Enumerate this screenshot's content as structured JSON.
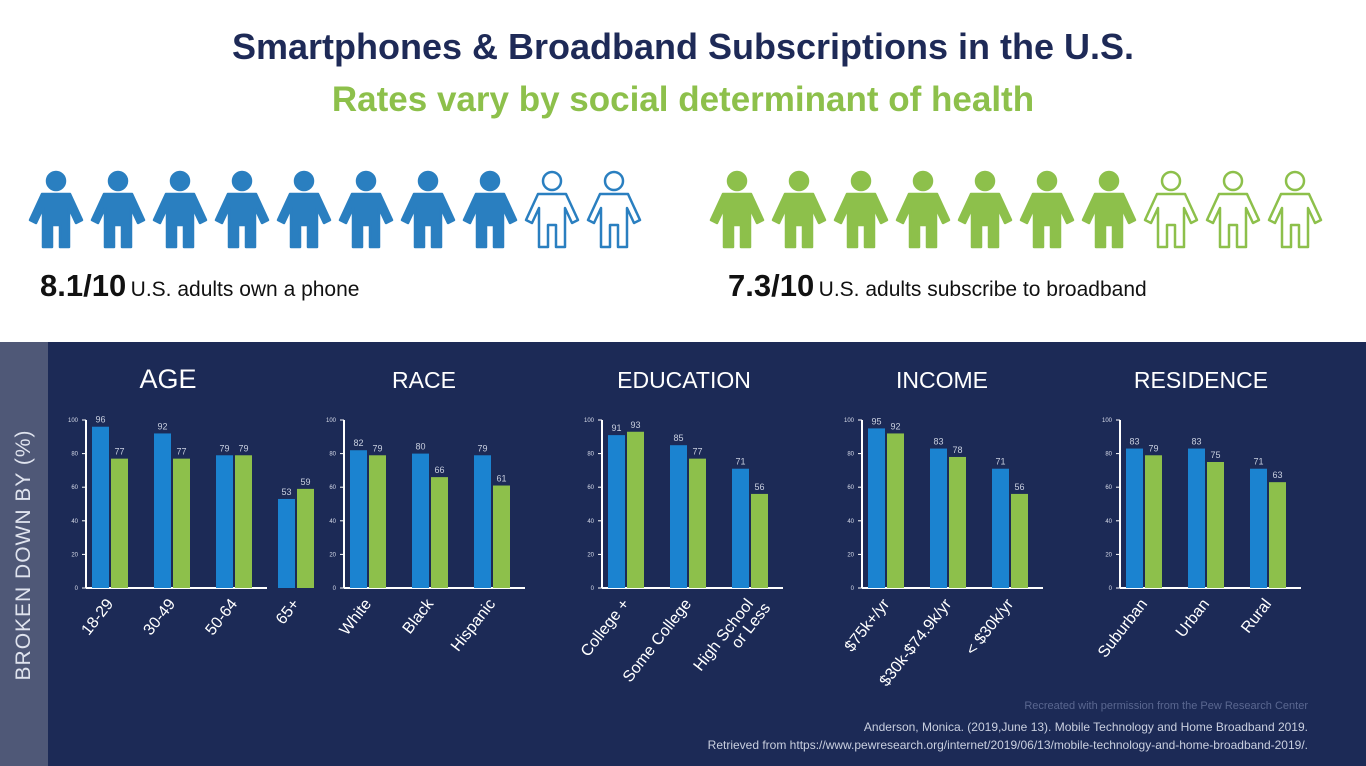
{
  "header": {
    "title": "Smartphones & Broadband Subscriptions in the U.S.",
    "subtitle": "Rates vary by social determinant of health"
  },
  "phone_stat": {
    "value": "8.1/10",
    "text": "U.S. adults own a phone",
    "filled": 8,
    "total": 10,
    "color": "#2a7fc0"
  },
  "broadband_stat": {
    "value": "7.3/10",
    "text": "U.S. adults subscribe to broadband",
    "filled": 7,
    "total": 10,
    "color": "#8dc04b"
  },
  "sidebar": {
    "label": "BROKEN DOWN BY (%)"
  },
  "colors": {
    "smartphone": "#1b83d0",
    "broadband": "#8dc04b",
    "panel": "#1c2a56"
  },
  "chart_data": [
    {
      "type": "bar",
      "title": "AGE",
      "categories": [
        "18-29",
        "30-49",
        "50-64",
        "65+"
      ],
      "series": [
        {
          "name": "Smartphone",
          "values": [
            96,
            92,
            79,
            53
          ]
        },
        {
          "name": "Broadband",
          "values": [
            77,
            77,
            79,
            59
          ]
        }
      ],
      "ylim": [
        0,
        100
      ]
    },
    {
      "type": "bar",
      "title": "RACE",
      "categories": [
        "White",
        "Black",
        "Hispanic"
      ],
      "series": [
        {
          "name": "Smartphone",
          "values": [
            82,
            80,
            79
          ]
        },
        {
          "name": "Broadband",
          "values": [
            79,
            66,
            61
          ]
        }
      ],
      "ylim": [
        0,
        100
      ]
    },
    {
      "type": "bar",
      "title": "EDUCATION",
      "categories": [
        "College +",
        "Some College",
        "High School or Less"
      ],
      "series": [
        {
          "name": "Smartphone",
          "values": [
            91,
            85,
            71
          ]
        },
        {
          "name": "Broadband",
          "values": [
            93,
            77,
            56
          ]
        }
      ],
      "ylim": [
        0,
        100
      ]
    },
    {
      "type": "bar",
      "title": "INCOME",
      "categories": [
        "$75k+/yr",
        "$30k-$74.9k/yr",
        "< $30k/yr"
      ],
      "series": [
        {
          "name": "Smartphone",
          "values": [
            95,
            83,
            71
          ]
        },
        {
          "name": "Broadband",
          "values": [
            92,
            78,
            56
          ]
        }
      ],
      "ylim": [
        0,
        100
      ]
    },
    {
      "type": "bar",
      "title": "RESIDENCE",
      "categories": [
        "Suburban",
        "Urban",
        "Rural"
      ],
      "series": [
        {
          "name": "Smartphone",
          "values": [
            83,
            83,
            71
          ]
        },
        {
          "name": "Broadband",
          "values": [
            79,
            75,
            63
          ]
        }
      ],
      "ylim": [
        0,
        100
      ]
    }
  ],
  "credits": {
    "note": "Recreated with permission from the Pew Research Center",
    "citation": "Anderson, Monica. (2019,June 13). Mobile Technology and Home Broadband 2019.",
    "retrieved": "Retrieved from https://www.pewresearch.org/internet/2019/06/13/mobile-technology-and-home-broadband-2019/."
  }
}
